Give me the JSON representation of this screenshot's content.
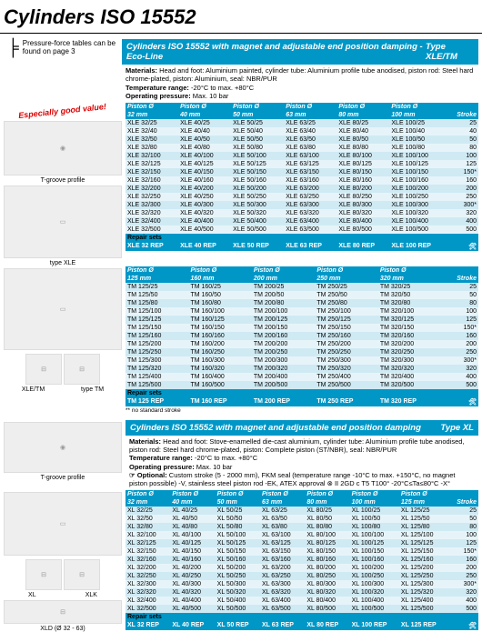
{
  "pageTitle": "Cylinders ISO 15552",
  "pressureNote": "Pressure-force tables can be found on page 3",
  "sections": [
    {
      "headerTitle": "Cylinders ISO 15552 with magnet and adjustable end position damping - Eco-Line",
      "headerType": "Type XLE/TM",
      "specs": "Materials: Head and foot: Aluminium painted, cylinder tube: Aluminium profile tube anodised, piston rod: Steel hard chrome-plated, piston: Aluminium, seal: NBR/PUR\nTemperature range: -20°C to max. +80°C\nOperating pressure: Max. 10 bar",
      "badge": "Especially good value!",
      "leftCaptions": [
        "T-groove profile",
        "type XLE"
      ],
      "table1": {
        "pistonHeaders": [
          "Piston Ø",
          "Piston Ø",
          "Piston Ø",
          "Piston Ø",
          "Piston Ø",
          "Piston Ø"
        ],
        "bores": [
          "32 mm",
          "40 mm",
          "50 mm",
          "63 mm",
          "80 mm",
          "100 mm"
        ],
        "strokeLabel": "Stroke",
        "rows": [
          [
            "XLE 32/25",
            "XLE 40/25",
            "XLE 50/25",
            "XLE 63/25",
            "XLE 80/25",
            "XLE 100/25",
            "25"
          ],
          [
            "XLE 32/40",
            "XLE 40/40",
            "XLE 50/40",
            "XLE 63/40",
            "XLE 80/40",
            "XLE 100/40",
            "40"
          ],
          [
            "XLE 32/50",
            "XLE 40/50",
            "XLE 50/50",
            "XLE 63/50",
            "XLE 80/50",
            "XLE 100/50",
            "50"
          ],
          [
            "XLE 32/80",
            "XLE 40/80",
            "XLE 50/80",
            "XLE 63/80",
            "XLE 80/80",
            "XLE 100/80",
            "80"
          ],
          [
            "XLE 32/100",
            "XLE 40/100",
            "XLE 50/100",
            "XLE 63/100",
            "XLE 80/100",
            "XLE 100/100",
            "100"
          ],
          [
            "XLE 32/125",
            "XLE 40/125",
            "XLE 50/125",
            "XLE 63/125",
            "XLE 80/125",
            "XLE 100/125",
            "125"
          ],
          [
            "XLE 32/150",
            "XLE 40/150",
            "XLE 50/150",
            "XLE 63/150",
            "XLE 80/150",
            "XLE 100/150",
            "150*"
          ],
          [
            "XLE 32/160",
            "XLE 40/160",
            "XLE 50/160",
            "XLE 63/160",
            "XLE 80/160",
            "XLE 100/160",
            "160"
          ],
          [
            "XLE 32/200",
            "XLE 40/200",
            "XLE 50/200",
            "XLE 63/200",
            "XLE 80/200",
            "XLE 100/200",
            "200"
          ],
          [
            "XLE 32/250",
            "XLE 40/250",
            "XLE 50/250",
            "XLE 63/250",
            "XLE 80/250",
            "XLE 100/250",
            "250"
          ],
          [
            "XLE 32/300",
            "XLE 40/300",
            "XLE 50/300",
            "XLE 63/300",
            "XLE 80/300",
            "XLE 100/300",
            "300*"
          ],
          [
            "XLE 32/320",
            "XLE 40/320",
            "XLE 50/320",
            "XLE 63/320",
            "XLE 80/320",
            "XLE 100/320",
            "320"
          ],
          [
            "XLE 32/400",
            "XLE 40/400",
            "XLE 50/400",
            "XLE 63/400",
            "XLE 80/400",
            "XLE 100/400",
            "400"
          ],
          [
            "XLE 32/500",
            "XLE 40/500",
            "XLE 50/500",
            "XLE 63/500",
            "XLE 80/500",
            "XLE 100/500",
            "500"
          ]
        ],
        "repairLabel": "Repair sets",
        "repairRow": [
          "XLE 32 REP",
          "XLE 40 REP",
          "XLE 50 REP",
          "XLE 63 REP",
          "XLE 80 REP",
          "XLE 100 REP"
        ]
      },
      "leftCaptions2": [
        "XLE/TM",
        "type TM"
      ],
      "table2": {
        "pistonHeaders": [
          "Piston Ø",
          "Piston Ø",
          "Piston Ø",
          "Piston Ø",
          "Piston Ø"
        ],
        "bores": [
          "125 mm",
          "160 mm",
          "200 mm",
          "250 mm",
          "320 mm"
        ],
        "strokeLabel": "Stroke",
        "rows": [
          [
            "TM 125/25",
            "TM 160/25",
            "TM 200/25",
            "TM 250/25",
            "TM 320/25",
            "25"
          ],
          [
            "TM 125/50",
            "TM 160/50",
            "TM 200/50",
            "TM 250/50",
            "TM 320/50",
            "50"
          ],
          [
            "TM 125/80",
            "TM 160/80",
            "TM 200/80",
            "TM 250/80",
            "TM 320/80",
            "80"
          ],
          [
            "TM 125/100",
            "TM 160/100",
            "TM 200/100",
            "TM 250/100",
            "TM 320/100",
            "100"
          ],
          [
            "TM 125/125",
            "TM 160/125",
            "TM 200/125",
            "TM 250/125",
            "TM 320/125",
            "125"
          ],
          [
            "TM 125/150",
            "TM 160/150",
            "TM 200/150",
            "TM 250/150",
            "TM 320/150",
            "150*"
          ],
          [
            "TM 125/160",
            "TM 160/160",
            "TM 200/160",
            "TM 250/160",
            "TM 320/160",
            "160"
          ],
          [
            "TM 125/200",
            "TM 160/200",
            "TM 200/200",
            "TM 250/200",
            "TM 320/200",
            "200"
          ],
          [
            "TM 125/250",
            "TM 160/250",
            "TM 200/250",
            "TM 250/250",
            "TM 320/250",
            "250"
          ],
          [
            "TM 125/300",
            "TM 160/300",
            "TM 200/300",
            "TM 250/300",
            "TM 320/300",
            "300*"
          ],
          [
            "TM 125/320",
            "TM 160/320",
            "TM 200/320",
            "TM 250/320",
            "TM 320/320",
            "320"
          ],
          [
            "TM 125/400",
            "TM 160/400",
            "TM 200/400",
            "TM 250/400",
            "TM 320/400",
            "400"
          ],
          [
            "TM 125/500",
            "TM 160/500",
            "TM 200/500",
            "TM 250/500",
            "TM 320/500",
            "500"
          ]
        ],
        "repairLabel": "Repair sets",
        "repairRow": [
          "TM 125 REP",
          "TM 160 REP",
          "TM 200 REP",
          "TM 250 REP",
          "TM 320 REP"
        ]
      },
      "footnote": "** no standard stroke"
    },
    {
      "headerTitle": "Cylinders ISO 15552 with magnet and adjustable end position damping",
      "headerType": "Type XL",
      "specs": "Materials: Head and foot: Stove-enamelled die-cast aluminium, cylinder tube: Aluminium profile tube anodised, piston rod: Steel hard chrome-plated, piston: Complete piston (ST/NBR), seal: NBR/PUR\nTemperature range: -20°C to max. +80°C\nOperating pressure: Max. 10 bar\n☞ Optional: Custom stroke (5 - 2000 mm), FKM seal (temperature range -10°C to max. +150°C, no magnet piston possible) -V, stainless steel piston rod -EK, ATEX approval ⊗ II 2GD c T5 T100° -20°C≤Ta≤80°C -X°",
      "leftCaptions": [
        "T-groove profile",
        "XL",
        "XLK",
        "XLD (Ø 32 - 63)"
      ],
      "table1": {
        "pistonHeaders": [
          "Piston Ø",
          "Piston Ø",
          "Piston Ø",
          "Piston Ø",
          "Piston Ø",
          "Piston Ø",
          "Piston Ø"
        ],
        "bores": [
          "32 mm",
          "40 mm",
          "50 mm",
          "63 mm",
          "80 mm",
          "100 mm",
          "125 mm"
        ],
        "strokeLabel": "Stroke",
        "rows": [
          [
            "XL 32/25",
            "XL 40/25",
            "XL 50/25",
            "XL 63/25",
            "XL 80/25",
            "XL 100/25",
            "XL 125/25",
            "25"
          ],
          [
            "XL 32/50",
            "XL 40/50",
            "XL 50/50",
            "XL 63/50",
            "XL 80/50",
            "XL 100/50",
            "XL 125/50",
            "50"
          ],
          [
            "XL 32/80",
            "XL 40/80",
            "XL 50/80",
            "XL 63/80",
            "XL 80/80",
            "XL 100/80",
            "XL 125/80",
            "80"
          ],
          [
            "XL 32/100",
            "XL 40/100",
            "XL 50/100",
            "XL 63/100",
            "XL 80/100",
            "XL 100/100",
            "XL 125/100",
            "100"
          ],
          [
            "XL 32/125",
            "XL 40/125",
            "XL 50/125",
            "XL 63/125",
            "XL 80/125",
            "XL 100/125",
            "XL 125/125",
            "125"
          ],
          [
            "XL 32/150",
            "XL 40/150",
            "XL 50/150",
            "XL 63/150",
            "XL 80/150",
            "XL 100/150",
            "XL 125/150",
            "150*"
          ],
          [
            "XL 32/160",
            "XL 40/160",
            "XL 50/160",
            "XL 63/160",
            "XL 80/160",
            "XL 100/160",
            "XL 125/160",
            "160"
          ],
          [
            "XL 32/200",
            "XL 40/200",
            "XL 50/200",
            "XL 63/200",
            "XL 80/200",
            "XL 100/200",
            "XL 125/200",
            "200"
          ],
          [
            "XL 32/250",
            "XL 40/250",
            "XL 50/250",
            "XL 63/250",
            "XL 80/250",
            "XL 100/250",
            "XL 125/250",
            "250"
          ],
          [
            "XL 32/300",
            "XL 40/300",
            "XL 50/300",
            "XL 63/300",
            "XL 80/300",
            "XL 100/300",
            "XL 125/300",
            "300*"
          ],
          [
            "XL 32/320",
            "XL 40/320",
            "XL 50/320",
            "XL 63/320",
            "XL 80/320",
            "XL 100/320",
            "XL 125/320",
            "320"
          ],
          [
            "XL 32/400",
            "XL 40/400",
            "XL 50/400",
            "XL 63/400",
            "XL 80/400",
            "XL 100/400",
            "XL 125/400",
            "400"
          ],
          [
            "XL 32/500",
            "XL 40/500",
            "XL 50/500",
            "XL 63/500",
            "XL 80/500",
            "XL 100/500",
            "XL 125/500",
            "500"
          ]
        ],
        "repairLabel": "Repair sets",
        "repairRow": [
          "XL 32 REP",
          "XL 40 REP",
          "XL 50 REP",
          "XL 63 REP",
          "XL 80 REP",
          "XL 100 REP",
          "XL 125 REP"
        ]
      }
    }
  ],
  "colors": {
    "brandBlue": "#0097c7",
    "rowOdd": "#cfeaf3",
    "rowEven": "#e6f4f9",
    "badgeRed": "#d00"
  }
}
